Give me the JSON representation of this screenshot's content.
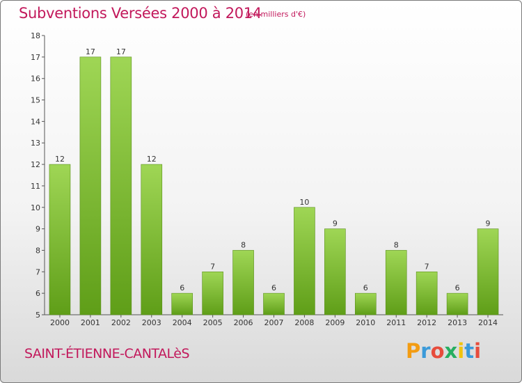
{
  "chart_data": {
    "type": "bar",
    "title": "Subventions Versées 2000 à 2014",
    "subtitle": "(en milliers d'€)",
    "categories": [
      "2000",
      "2001",
      "2002",
      "2003",
      "2004",
      "2005",
      "2006",
      "2007",
      "2008",
      "2009",
      "2010",
      "2011",
      "2012",
      "2013",
      "2014"
    ],
    "values": [
      12,
      17,
      17,
      12,
      6,
      7,
      8,
      6,
      10,
      9,
      6,
      8,
      7,
      6,
      9
    ],
    "ylim": [
      5,
      18
    ],
    "yticks": [
      5,
      6,
      7,
      8,
      9,
      10,
      11,
      12,
      13,
      14,
      15,
      16,
      17,
      18
    ],
    "bar_color": "#7cc22f",
    "grid": false
  },
  "footer": {
    "commune": "SAINT-ÉTIENNE-CANTALèS",
    "logo": "Proxiti"
  },
  "colors": {
    "title": "#c2185b",
    "logo_letters": [
      "#f39c12",
      "#3b9ad9",
      "#e74c3c",
      "#27ae60",
      "#f1c40f",
      "#3b9ad9",
      "#e74c3c"
    ]
  }
}
